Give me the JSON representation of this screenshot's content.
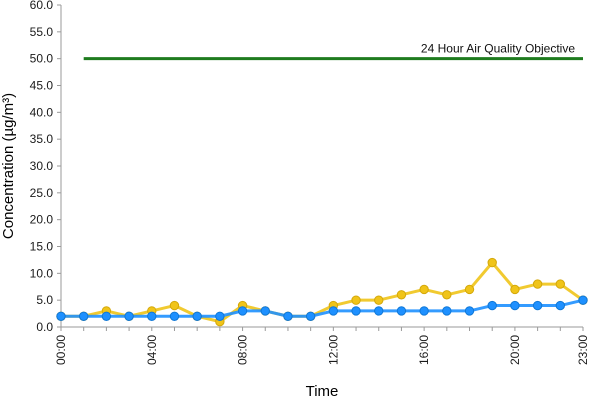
{
  "chart_data": {
    "type": "line",
    "title": "",
    "xlabel": "Time",
    "ylabel": "Concentration (µg/m³)",
    "ylim": [
      0,
      60
    ],
    "y_ticks": [
      "0.0",
      "5.0",
      "10.0",
      "15.0",
      "20.0",
      "25.0",
      "30.0",
      "35.0",
      "40.0",
      "45.0",
      "50.0",
      "55.0",
      "60.0"
    ],
    "x_hours": [
      0,
      1,
      2,
      3,
      4,
      5,
      6,
      7,
      8,
      9,
      10,
      11,
      12,
      13,
      14,
      15,
      16,
      17,
      18,
      19,
      20,
      21,
      22,
      23
    ],
    "x_ticks": [
      "00:00",
      "04:00",
      "08:00",
      "12:00",
      "16:00",
      "20:00",
      "23:00"
    ],
    "x_tick_hours": [
      0,
      4,
      8,
      12,
      16,
      20,
      23
    ],
    "grid": false,
    "legend": "none",
    "series": [
      {
        "color": "#f0c419",
        "stroke": "#d4a80a",
        "values": [
          2,
          2,
          3,
          2,
          3,
          4,
          2,
          1,
          4,
          3,
          2,
          2,
          4,
          5,
          5,
          6,
          7,
          6,
          7,
          12,
          7,
          8,
          8,
          5
        ]
      },
      {
        "color": "#1e90ff",
        "stroke": "#0f77d6",
        "values": [
          2,
          2,
          2,
          2,
          2,
          2,
          2,
          2,
          3,
          3,
          2,
          2,
          3,
          3,
          3,
          3,
          3,
          3,
          3,
          4,
          4,
          4,
          4,
          5
        ]
      }
    ],
    "reference_line": {
      "label": "24 Hour Air Quality Objective",
      "value": 50,
      "x_start": 1,
      "x_end": 23,
      "color": "#1e7b1e"
    }
  }
}
